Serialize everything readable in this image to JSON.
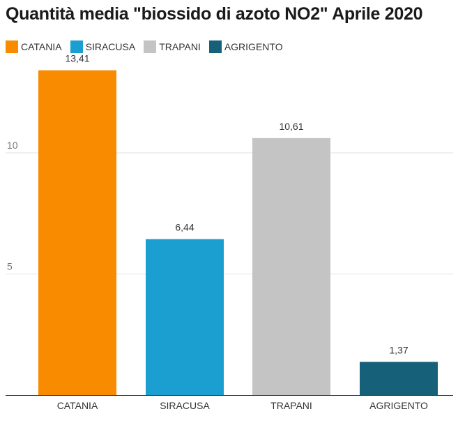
{
  "chart_data": {
    "type": "bar",
    "title": "Quantità media \"biossido di azoto NO2\" Aprile 2020",
    "xlabel": "",
    "ylabel": "",
    "categories": [
      "CATANIA",
      "SIRACUSA",
      "TRAPANI",
      "AGRIGENTO"
    ],
    "values": [
      13.41,
      6.44,
      10.61,
      1.37
    ],
    "value_labels": [
      "13,41",
      "6,44",
      "10,61",
      "1,37"
    ],
    "colors": [
      "#F98B00",
      "#1A9FD0",
      "#C4C4C4",
      "#17607A"
    ],
    "ylim": [
      0,
      15
    ],
    "yticks": [
      5,
      10
    ],
    "ytick_labels": [
      "5",
      "10"
    ],
    "grid": true,
    "legend": {
      "placement": "top-left",
      "entries": [
        "CATANIA",
        "SIRACUSA",
        "TRAPANI",
        "AGRIGENTO"
      ]
    }
  }
}
